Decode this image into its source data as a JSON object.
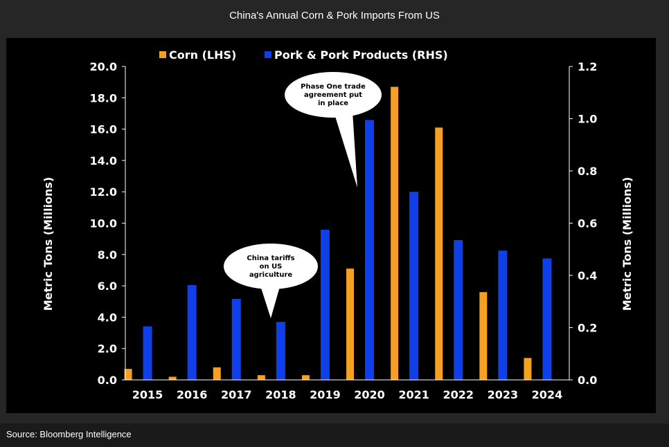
{
  "header": {
    "title": "China's Annual Corn & Pork Imports From US"
  },
  "footer": {
    "source": "Source: Bloomberg Intelligence"
  },
  "chart_data": {
    "type": "bar",
    "categories": [
      "2015",
      "2016",
      "2017",
      "2018",
      "2019",
      "2020",
      "2021",
      "2022",
      "2023",
      "2024"
    ],
    "series": [
      {
        "name": "Corn (LHS)",
        "axis": "left",
        "color": "#f5a021",
        "values": [
          0.7,
          0.2,
          0.8,
          0.3,
          0.3,
          7.1,
          18.7,
          16.1,
          5.6,
          1.4
        ]
      },
      {
        "name": "Pork & Pork Products (RHS)",
        "axis": "right",
        "color": "#0f3fe8",
        "values": [
          0.205,
          0.363,
          0.31,
          0.222,
          0.575,
          0.995,
          0.72,
          0.535,
          0.495,
          0.465
        ]
      }
    ],
    "ylabel": "Metric Tons (Millions)",
    "y2label": "Metric Tons (Millions)",
    "ylim": [
      0,
      20
    ],
    "y2lim": [
      0,
      1.2
    ],
    "yticks": [
      "0.0",
      "2.0",
      "4.0",
      "6.0",
      "8.0",
      "10.0",
      "12.0",
      "14.0",
      "16.0",
      "18.0",
      "20.0"
    ],
    "y2ticks": [
      "0.0",
      "0.2",
      "0.4",
      "0.6",
      "0.8",
      "1.0",
      "1.2"
    ],
    "legend_position": "top",
    "grid": false,
    "annotations": [
      {
        "lines": [
          "China tariffs",
          "on US",
          "agriculture"
        ],
        "category": "2018"
      },
      {
        "lines": [
          "Phase One trade",
          "agreement put",
          "in place"
        ],
        "category": "2020"
      }
    ]
  }
}
